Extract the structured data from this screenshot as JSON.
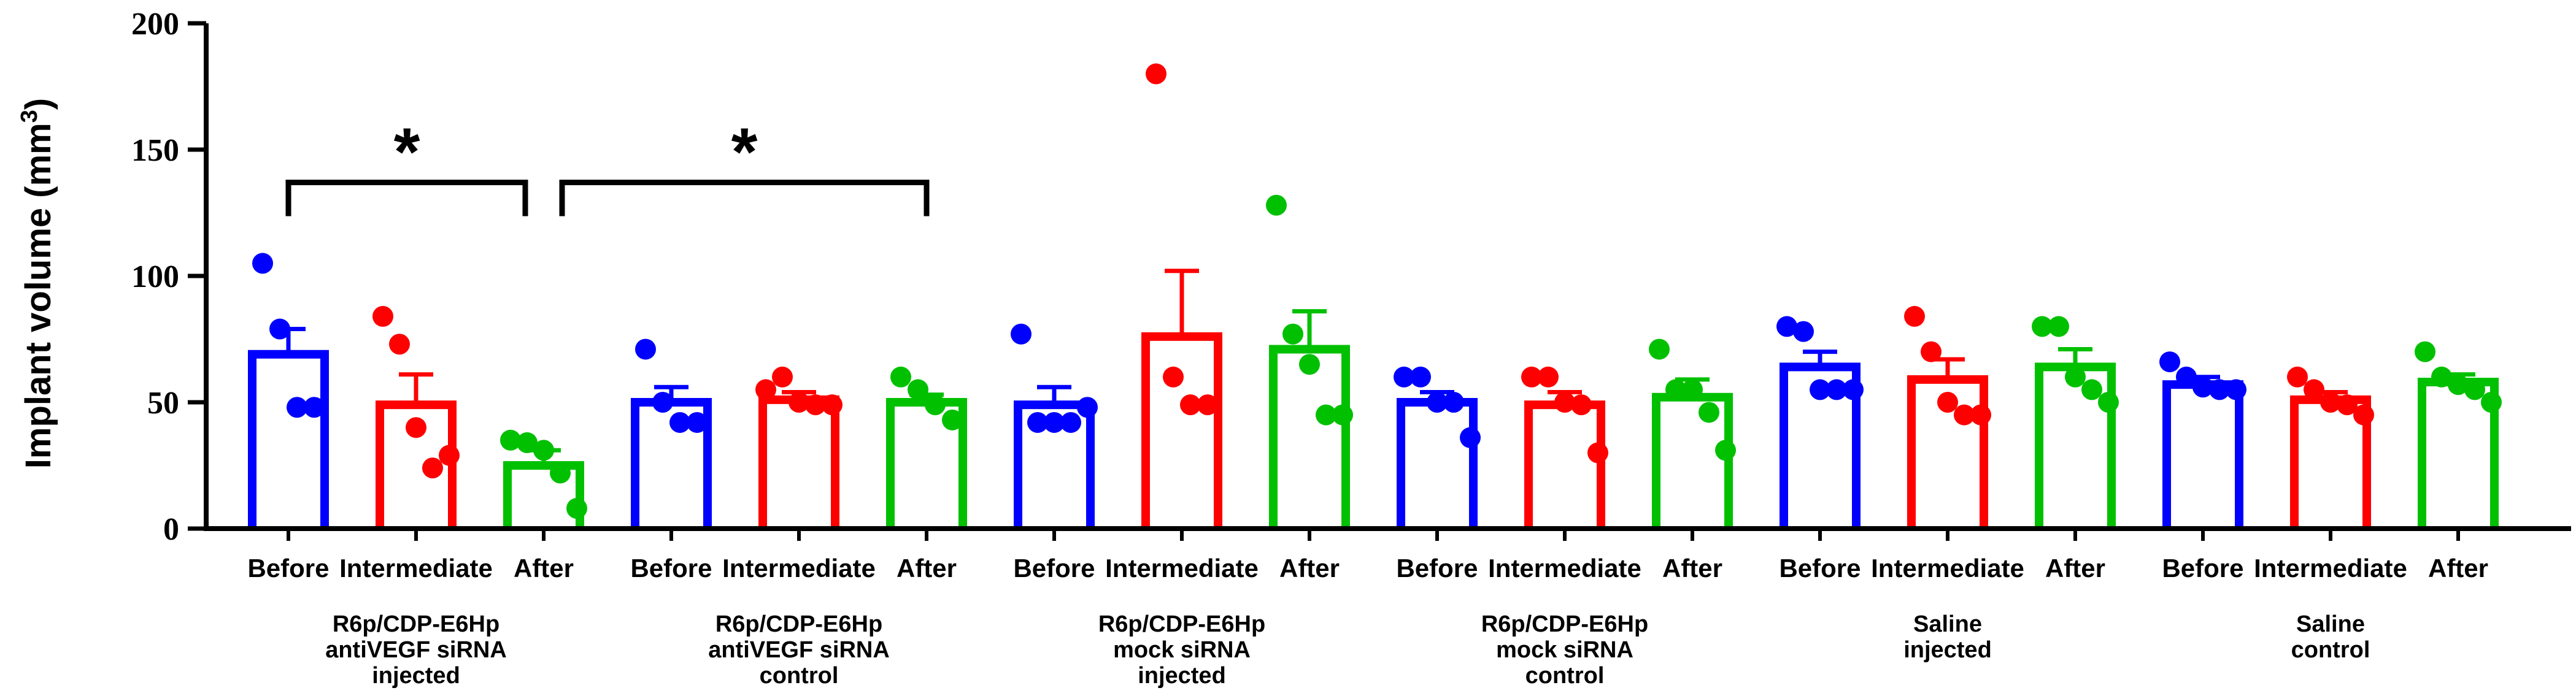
{
  "chart_data": {
    "type": "bar",
    "ylabel": "Implant volume (mm",
    "ylabel_sup": "3",
    "ylabel_close": ")",
    "ylim": [
      0,
      200
    ],
    "yticks": [
      0,
      50,
      100,
      150,
      200
    ],
    "colors": {
      "Before": "#0000ff",
      "Intermediate": "#ff0000",
      "After": "#00c000"
    },
    "groups": [
      {
        "label": [
          "R6p/CDP-E6Hp",
          "antiVEGF siRNA",
          "injected"
        ],
        "bars": [
          {
            "condition": "Before",
            "mean": 69,
            "sem": 10,
            "points": [
              105,
              79,
              48,
              48
            ]
          },
          {
            "condition": "Intermediate",
            "mean": 49,
            "sem": 12,
            "points": [
              84,
              73,
              40,
              24,
              29
            ]
          },
          {
            "condition": "After",
            "mean": 25,
            "sem": 6,
            "points": [
              35,
              34,
              31,
              22,
              8
            ]
          }
        ]
      },
      {
        "label": [
          "R6p/CDP-E6Hp",
          "antiVEGF siRNA",
          "control"
        ],
        "bars": [
          {
            "condition": "Before",
            "mean": 50,
            "sem": 6,
            "points": [
              71,
              50,
              42,
              42
            ]
          },
          {
            "condition": "Intermediate",
            "mean": 51,
            "sem": 3,
            "points": [
              55,
              60,
              50,
              49,
              49
            ]
          },
          {
            "condition": "After",
            "mean": 50,
            "sem": 3,
            "points": [
              60,
              55,
              49,
              43
            ]
          }
        ]
      },
      {
        "label": [
          "R6p/CDP-E6Hp",
          "mock siRNA",
          "injected"
        ],
        "bars": [
          {
            "condition": "Before",
            "mean": 49,
            "sem": 7,
            "points": [
              77,
              42,
              42,
              42,
              48
            ]
          },
          {
            "condition": "Intermediate",
            "mean": 76,
            "sem": 26,
            "points": [
              180,
              60,
              49,
              49
            ]
          },
          {
            "condition": "After",
            "mean": 71,
            "sem": 15,
            "points": [
              128,
              77,
              65,
              45,
              45
            ]
          }
        ]
      },
      {
        "label": [
          "R6p/CDP-E6Hp",
          "mock siRNA",
          "control"
        ],
        "bars": [
          {
            "condition": "Before",
            "mean": 50,
            "sem": 4,
            "points": [
              60,
              60,
              50,
              50,
              36
            ]
          },
          {
            "condition": "Intermediate",
            "mean": 49,
            "sem": 5,
            "points": [
              60,
              60,
              50,
              49,
              30
            ]
          },
          {
            "condition": "After",
            "mean": 52,
            "sem": 7,
            "points": [
              71,
              55,
              55,
              46,
              31
            ]
          }
        ]
      },
      {
        "label": [
          "Saline",
          "injected"
        ],
        "bars": [
          {
            "condition": "Before",
            "mean": 64,
            "sem": 6,
            "points": [
              80,
              78,
              55,
              55,
              55
            ]
          },
          {
            "condition": "Intermediate",
            "mean": 59,
            "sem": 8,
            "points": [
              84,
              70,
              50,
              45,
              45
            ]
          },
          {
            "condition": "After",
            "mean": 64,
            "sem": 7,
            "points": [
              80,
              80,
              60,
              55,
              50
            ]
          }
        ]
      },
      {
        "label": [
          "Saline",
          "control"
        ],
        "bars": [
          {
            "condition": "Before",
            "mean": 57,
            "sem": 3,
            "points": [
              66,
              60,
              56,
              55,
              55
            ]
          },
          {
            "condition": "Intermediate",
            "mean": 51,
            "sem": 3,
            "points": [
              60,
              55,
              50,
              49,
              45
            ]
          },
          {
            "condition": "After",
            "mean": 58,
            "sem": 3,
            "points": [
              70,
              60,
              57,
              55,
              50
            ]
          }
        ]
      }
    ],
    "significance": [
      {
        "from_group": 0,
        "from_bar": 0,
        "to_group": 0,
        "to_bar": 2,
        "bracket_y": 137,
        "label": "*"
      },
      {
        "from_group": 0,
        "from_bar": 2,
        "to_group": 1,
        "to_bar": 2,
        "bracket_y": 137,
        "label": "*"
      }
    ]
  }
}
